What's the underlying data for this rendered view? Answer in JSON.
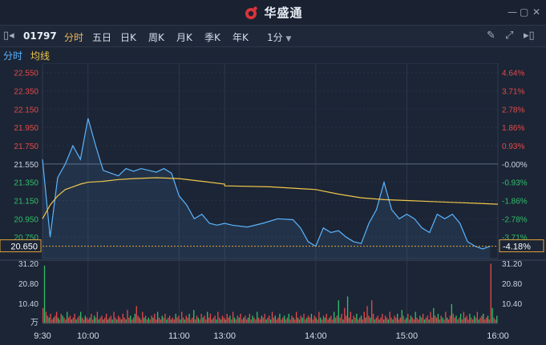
{
  "app": {
    "title": "华盛通"
  },
  "window": {
    "min_icon": "minimize-icon",
    "max_icon": "maximize-icon",
    "close_icon": "close-icon"
  },
  "toolbar": {
    "code": "01797",
    "tabs": [
      "分时",
      "五日",
      "日K",
      "周K",
      "月K",
      "季K",
      "年K"
    ],
    "active_tab": "分时",
    "interval": "1分",
    "icons": [
      "pencil-icon",
      "expand-icon",
      "dock-right-icon"
    ]
  },
  "subtabs": {
    "minute": "分时",
    "avg": "均线"
  },
  "colors": {
    "price": "#5bb4ff",
    "avg": "#f0c64a",
    "up": "#e24a4a",
    "down": "#2fbf6a",
    "accent": "#f0b85a"
  },
  "chart_data": {
    "type": "line",
    "series": [
      {
        "name": "分时",
        "x": [
          "9:30",
          "9:35",
          "9:40",
          "9:45",
          "9:50",
          "9:55",
          "10:00",
          "10:05",
          "10:10",
          "10:15",
          "10:20",
          "10:25",
          "10:30",
          "10:35",
          "10:40",
          "10:45",
          "10:50",
          "10:55",
          "11:00",
          "11:05",
          "11:10",
          "11:15",
          "11:20",
          "11:25",
          "11:30",
          "13:05",
          "13:15",
          "13:25",
          "13:35",
          "13:45",
          "13:50",
          "13:55",
          "14:00",
          "14:05",
          "14:10",
          "14:15",
          "14:20",
          "14:25",
          "14:30",
          "14:35",
          "14:40",
          "14:45",
          "14:50",
          "14:55",
          "15:00",
          "15:05",
          "15:10",
          "15:15",
          "15:20",
          "15:25",
          "15:30",
          "15:35",
          "15:40",
          "15:45",
          "15:50",
          "15:55"
        ],
        "values": [
          21.6,
          20.75,
          21.4,
          21.55,
          21.75,
          21.6,
          22.05,
          21.75,
          21.48,
          21.45,
          21.42,
          21.5,
          21.47,
          21.5,
          21.48,
          21.46,
          21.5,
          21.45,
          21.2,
          21.1,
          20.95,
          21.0,
          20.9,
          20.88,
          20.9,
          20.88,
          20.86,
          20.9,
          20.95,
          20.94,
          20.85,
          20.7,
          20.65,
          20.85,
          20.8,
          20.82,
          20.75,
          20.7,
          20.68,
          20.9,
          21.05,
          21.35,
          21.05,
          20.95,
          21.0,
          20.95,
          20.85,
          20.8,
          21.0,
          20.95,
          21.0,
          20.9,
          20.7,
          20.65,
          20.62,
          20.65
        ]
      },
      {
        "name": "均线",
        "x": [
          "9:30",
          "9:35",
          "9:40",
          "9:45",
          "9:50",
          "9:55",
          "10:00",
          "10:10",
          "10:20",
          "10:30",
          "10:45",
          "11:00",
          "11:15",
          "11:30",
          "13:00",
          "13:30",
          "14:00",
          "14:15",
          "14:30",
          "14:45",
          "15:00",
          "15:15",
          "15:30",
          "15:45",
          "16:00"
        ],
        "values": [
          20.95,
          21.1,
          21.2,
          21.27,
          21.3,
          21.33,
          21.35,
          21.36,
          21.38,
          21.39,
          21.4,
          21.39,
          21.36,
          21.33,
          21.31,
          21.3,
          21.27,
          21.22,
          21.18,
          21.16,
          21.15,
          21.14,
          21.13,
          21.12,
          21.11
        ]
      }
    ],
    "prev_close": 21.55,
    "last_price": "20.650",
    "last_change": "-4.18%",
    "y_labels_left": [
      "22.550",
      "22.350",
      "22.150",
      "21.950",
      "21.750",
      "21.550",
      "21.350",
      "21.150",
      "20.950",
      "20.750"
    ],
    "y_labels_right": [
      "4.64%",
      "3.71%",
      "2.78%",
      "1.86%",
      "0.93%",
      "-0.00%",
      "-0.93%",
      "-1.86%",
      "-2.78%",
      "-3.71%"
    ],
    "ylim": [
      20.55,
      22.6
    ],
    "x_labels": [
      "9:30",
      "10:00",
      "11:00",
      "13:00",
      "14:00",
      "15:00",
      "16:00"
    ],
    "volume": {
      "unit": "万",
      "y_labels": [
        "31.20",
        "20.80",
        "10.40"
      ],
      "max": 31.2,
      "bars": [
        8,
        30,
        6,
        4,
        3,
        5,
        2,
        3,
        4,
        6,
        3,
        2,
        5,
        4,
        3,
        2,
        6,
        3,
        4,
        2,
        3,
        5,
        2,
        3,
        4,
        6,
        3,
        2,
        4,
        3,
        2,
        3,
        5,
        2,
        4,
        3,
        6,
        2,
        3,
        4,
        2,
        3,
        5,
        2,
        3,
        4,
        2,
        6,
        3,
        2,
        4,
        3,
        2,
        5,
        3,
        2,
        7,
        3,
        4,
        2,
        3,
        5,
        9,
        4,
        3,
        2,
        6,
        3,
        4,
        2,
        3,
        2,
        4,
        3,
        5,
        2,
        6,
        3,
        2,
        4,
        3,
        5,
        2,
        3,
        4,
        2,
        3,
        2,
        5,
        3,
        4,
        2,
        6,
        3,
        2,
        4,
        3,
        5,
        2,
        3,
        7,
        2,
        4,
        3,
        2,
        5,
        3,
        4,
        2,
        6,
        3,
        5,
        2,
        3,
        4,
        2,
        6,
        3,
        2,
        4,
        3,
        2,
        5,
        3,
        4,
        2,
        6,
        3,
        2,
        4,
        3,
        5,
        2,
        3,
        4,
        2,
        3,
        5,
        2,
        4,
        3,
        2,
        6,
        3,
        2,
        4,
        3,
        5,
        2,
        3,
        4,
        2,
        6,
        3,
        4,
        2,
        3,
        5,
        2,
        3,
        4,
        2,
        3,
        5,
        2,
        4,
        3,
        2,
        6,
        3,
        2,
        4,
        3,
        5,
        2,
        3,
        4,
        3,
        5,
        2,
        4,
        3,
        2,
        6,
        3,
        2,
        4,
        3,
        5,
        2,
        3,
        4,
        2,
        6,
        3,
        4,
        12,
        3,
        5,
        2,
        8,
        4,
        14,
        3,
        6,
        2,
        4,
        3,
        5,
        2,
        3,
        4,
        2,
        6,
        3,
        9,
        4,
        3,
        12,
        5,
        2,
        3,
        4,
        2,
        3,
        5,
        2,
        4,
        3,
        2,
        6,
        3,
        2,
        4,
        3,
        5,
        2,
        3,
        7,
        4,
        2,
        3,
        5,
        2,
        4,
        3,
        2,
        6,
        3,
        2,
        4,
        3,
        5,
        2,
        3,
        4,
        2,
        6,
        3,
        8,
        4,
        3,
        5,
        2,
        4,
        3,
        2,
        6,
        3,
        2,
        4,
        10,
        5,
        3,
        4,
        2,
        3,
        5,
        2,
        6,
        3,
        4,
        2,
        5,
        3,
        2,
        4,
        3,
        6,
        2,
        3,
        4,
        5,
        2,
        3,
        4,
        2,
        31,
        8,
        3,
        2,
        4
      ],
      "colors_hint": "alternating up/down"
    }
  }
}
